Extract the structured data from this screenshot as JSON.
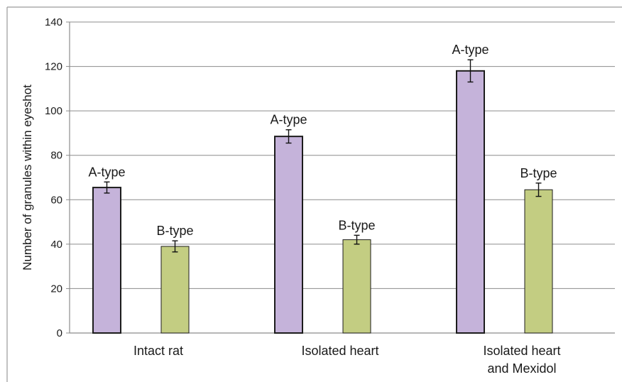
{
  "chart_data": {
    "type": "bar",
    "title": "",
    "xlabel": "",
    "ylabel": "Number of granules within eyeshot",
    "ylim": [
      0,
      140
    ],
    "yticks": [
      0,
      20,
      40,
      60,
      80,
      100,
      120,
      140
    ],
    "grid": true,
    "legend": "none",
    "categories": [
      [
        "Intact rat"
      ],
      [
        "Isolated heart"
      ],
      [
        "Isolated heart",
        "and Mexidol"
      ]
    ],
    "series": [
      {
        "name": "A-type",
        "color": "#c5b3da",
        "values": [
          65.5,
          88.5,
          118
        ],
        "errors": [
          2.5,
          3,
          5
        ],
        "labels": [
          "A-type",
          "A-type",
          "A-type"
        ]
      },
      {
        "name": "B-type",
        "color": "#c3cd82",
        "values": [
          39,
          42,
          64.5
        ],
        "errors": [
          2.5,
          2,
          3
        ],
        "labels": [
          "B-type",
          "B-type",
          "B-type"
        ]
      }
    ]
  }
}
